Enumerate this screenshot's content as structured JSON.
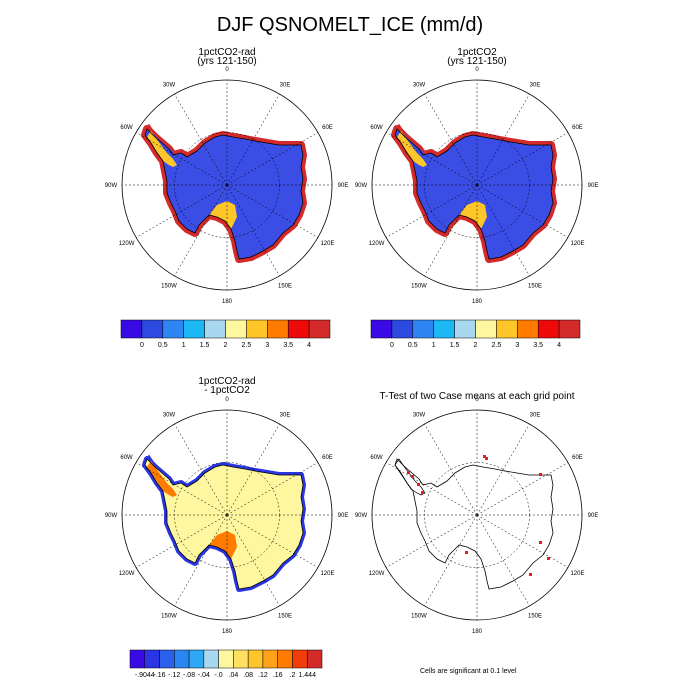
{
  "figure": {
    "title": "DJF QSNOMELT_ICE (mm/d)"
  },
  "panels": [
    {
      "title": "1pctCO2-rad",
      "subtitle": "(yrs 121-150)",
      "lon_labels": [
        "0",
        "30E",
        "60E",
        "90E",
        "120E",
        "150E",
        "180",
        "150W",
        "120W",
        "90W",
        "60W",
        "30W"
      ]
    },
    {
      "title": "1pctCO2",
      "subtitle": "(yrs 121-150)",
      "lon_labels": [
        "0",
        "30E",
        "60E",
        "90E",
        "120E",
        "150E",
        "180",
        "150W",
        "120W",
        "90W",
        "60W",
        "30W"
      ]
    },
    {
      "title": "1pctCO2-rad",
      "subtitle": "- 1pctCO2",
      "lon_labels": [
        "0",
        "30E",
        "60E",
        "90E",
        "120E",
        "150E",
        "180",
        "150W",
        "120W",
        "90W",
        "60W",
        "30W"
      ]
    },
    {
      "title": "T-Test of two Case means at each grid point",
      "subtitle": "",
      "lon_labels": [
        "0",
        "30E",
        "60E",
        "90E",
        "120E",
        "150E",
        "180",
        "150W",
        "120W",
        "90W",
        "60W",
        "30W"
      ],
      "note": "Cells are significant at 0.1 level"
    }
  ],
  "colorbars": {
    "abs": {
      "colors": [
        "#3a0ae6",
        "#2c49e0",
        "#2f86f2",
        "#1cb8f5",
        "#a8d8f0",
        "#fff7a0",
        "#ffc629",
        "#ff7c00",
        "#ee0a0a",
        "#d42a2a"
      ],
      "labels": [
        "0",
        "0.5",
        "1",
        "1.5",
        "2",
        "2.5",
        "3",
        "3.5",
        "4"
      ]
    },
    "diff": {
      "colors": [
        "#3a0ae6",
        "#2a36e6",
        "#2c60ea",
        "#2c86f2",
        "#2ea8f5",
        "#a8d8f0",
        "#fff7a0",
        "#ffe060",
        "#ffc629",
        "#ffa21a",
        "#ff7c00",
        "#f23c0a",
        "#d42a2a"
      ],
      "labels": [
        "-.9044",
        "-.16",
        "-.12",
        "-.08",
        "-.04",
        "-.0",
        ".04",
        ".08",
        ".12",
        ".16",
        ".2",
        "1.444"
      ]
    }
  },
  "chart_data": [
    {
      "type": "heatmap",
      "title": "1pctCO2-rad",
      "subtitle": "(yrs 121-150)",
      "projection": "south polar stereographic",
      "lon_labels": [
        "0",
        "30E",
        "60E",
        "90E",
        "120E",
        "150E",
        "180",
        "150W",
        "120W",
        "90W",
        "60W",
        "30W"
      ],
      "colorbar_levels": [
        0,
        0.5,
        1,
        1.5,
        2,
        2.5,
        3,
        3.5,
        4
      ],
      "summary": {
        "interior": 0,
        "coast": "3.5-4+"
      }
    },
    {
      "type": "heatmap",
      "title": "1pctCO2",
      "subtitle": "(yrs 121-150)",
      "projection": "south polar stereographic",
      "lon_labels": [
        "0",
        "30E",
        "60E",
        "90E",
        "120E",
        "150E",
        "180",
        "150W",
        "120W",
        "90W",
        "60W",
        "30W"
      ],
      "colorbar_levels": [
        0,
        0.5,
        1,
        1.5,
        2,
        2.5,
        3,
        3.5,
        4
      ],
      "summary": {
        "interior": 0,
        "coast": "3.5-4+"
      }
    },
    {
      "type": "heatmap",
      "title": "1pctCO2-rad",
      "subtitle": "- 1pctCO2",
      "projection": "south polar stereographic",
      "lon_labels": [
        "0",
        "30E",
        "60E",
        "90E",
        "120E",
        "150E",
        "180",
        "150W",
        "120W",
        "90W",
        "60W",
        "30W"
      ],
      "colorbar_levels": [
        -0.9044,
        -0.16,
        -0.12,
        -0.08,
        -0.04,
        -0.0,
        0.04,
        0.08,
        0.12,
        0.16,
        0.2,
        1.444
      ],
      "summary": {
        "interior": "-0.0 to 0.04",
        "coast": "-0.16 and below"
      }
    },
    {
      "type": "heatmap",
      "title": "T-Test of two Case means at each grid point",
      "projection": "south polar stereographic",
      "lon_labels": [
        "0",
        "30E",
        "60E",
        "90E",
        "120E",
        "150E",
        "180",
        "150W",
        "120W",
        "90W",
        "60W",
        "30W"
      ],
      "note": "Cells are significant at 0.1 level"
    }
  ]
}
